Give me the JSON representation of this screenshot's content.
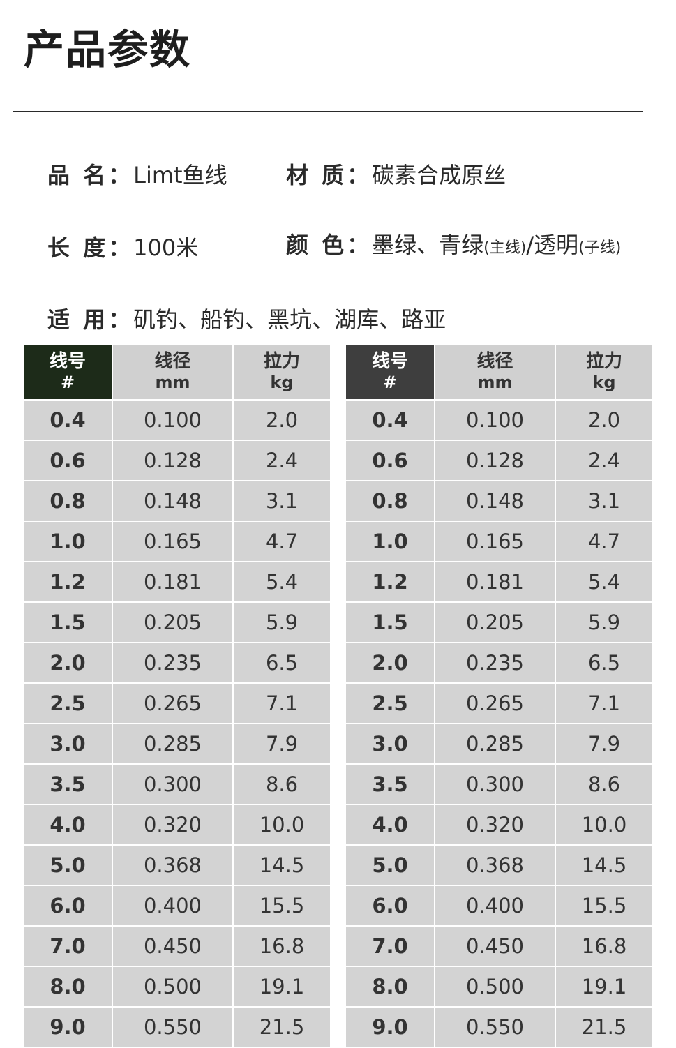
{
  "title": "产品参数",
  "specs": {
    "name_label": "品 名：",
    "name_value": "Limt鱼线",
    "material_label": "材 质：",
    "material_value": "碳素合成原丝",
    "length_label": "长 度：",
    "length_value": "100米",
    "color_label": "颜 色：",
    "color_value_a": "墨绿、青绿",
    "color_note_a": "(主线)",
    "color_value_b": "/透明",
    "color_note_b": "(子线)",
    "use_label": "适 用：",
    "use_value": "矶钓、船钓、黑坑、湖库、路亚"
  },
  "table_headers": [
    {
      "main": "线号",
      "sub": "#"
    },
    {
      "main": "线径",
      "sub": "mm"
    },
    {
      "main": "拉力",
      "sub": "kg"
    }
  ],
  "rows": [
    [
      "0.4",
      "0.100",
      "2.0"
    ],
    [
      "0.6",
      "0.128",
      "2.4"
    ],
    [
      "0.8",
      "0.148",
      "3.1"
    ],
    [
      "1.0",
      "0.165",
      "4.7"
    ],
    [
      "1.2",
      "0.181",
      "5.4"
    ],
    [
      "1.5",
      "0.205",
      "5.9"
    ],
    [
      "2.0",
      "0.235",
      "6.5"
    ],
    [
      "2.5",
      "0.265",
      "7.1"
    ],
    [
      "3.0",
      "0.285",
      "7.9"
    ],
    [
      "3.5",
      "0.300",
      "8.6"
    ],
    [
      "4.0",
      "0.320",
      "10.0"
    ],
    [
      "5.0",
      "0.368",
      "14.5"
    ],
    [
      "6.0",
      "0.400",
      "15.5"
    ],
    [
      "7.0",
      "0.450",
      "16.8"
    ],
    [
      "8.0",
      "0.500",
      "19.1"
    ],
    [
      "9.0",
      "0.550",
      "21.5"
    ]
  ],
  "colors": {
    "table1_first_col": "#1d2b19",
    "table2_first_col": "#3e3e3e",
    "cell_bg": "#d3d3d3"
  }
}
